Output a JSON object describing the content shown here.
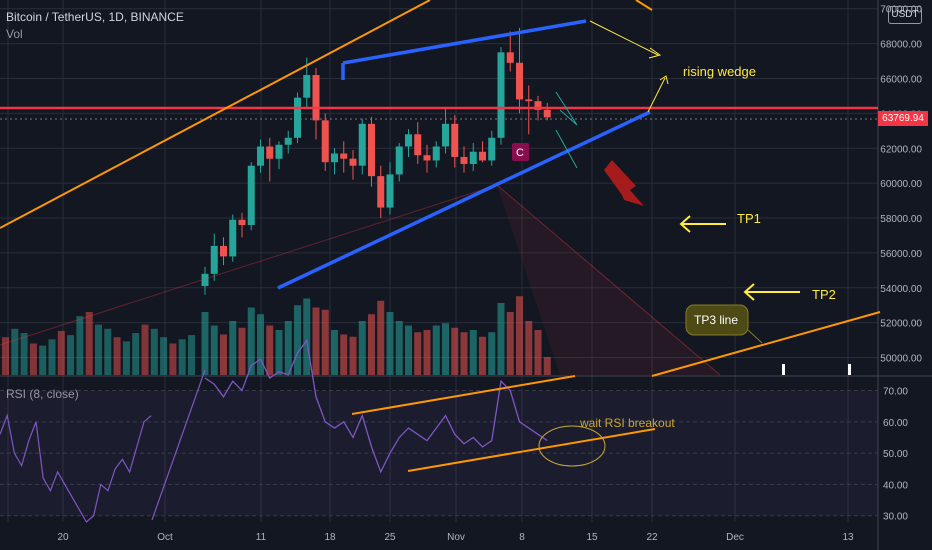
{
  "header": {
    "symbol_line": "Bitcoin / TetherUS, 1D, BINANCE",
    "volume_label": "Vol",
    "rsi_label": "RSI (8, close)",
    "currency_badge": "USDT",
    "last_price": "63769.94"
  },
  "colors": {
    "background": "#131722",
    "bull": "#26a69a",
    "bear": "#ef5350",
    "wedge": "#2962ff",
    "trend": "#ff9800",
    "resistance": "#f23645",
    "annotation": "#ffeb3b",
    "rsi": "#7e57c2"
  },
  "chart_data": [
    {
      "type": "candlestick",
      "title": "",
      "x_ticks": [
        "20",
        "Oct",
        "11",
        "18",
        "25",
        "Nov",
        "8",
        "15",
        "22",
        "Dec",
        "13"
      ],
      "y_ticks": [
        50000,
        52000,
        54000,
        56000,
        58000,
        60000,
        62000,
        64000,
        66000,
        68000,
        70000
      ],
      "ylim": [
        49000,
        70500
      ],
      "last_price": 63769.94,
      "horizontal_line": 64300,
      "candles": [
        {
          "o": 54100,
          "h": 55200,
          "l": 53600,
          "c": 54800
        },
        {
          "o": 54800,
          "h": 57100,
          "l": 54400,
          "c": 56400
        },
        {
          "o": 56400,
          "h": 56900,
          "l": 55300,
          "c": 55800
        },
        {
          "o": 55800,
          "h": 58200,
          "l": 55500,
          "c": 57900
        },
        {
          "o": 57900,
          "h": 58300,
          "l": 56900,
          "c": 57600
        },
        {
          "o": 57600,
          "h": 61200,
          "l": 57300,
          "c": 61000
        },
        {
          "o": 61000,
          "h": 62500,
          "l": 60600,
          "c": 62100
        },
        {
          "o": 62100,
          "h": 62600,
          "l": 60100,
          "c": 61400
        },
        {
          "o": 61400,
          "h": 62400,
          "l": 60800,
          "c": 62200
        },
        {
          "o": 62200,
          "h": 63000,
          "l": 61700,
          "c": 62600
        },
        {
          "o": 62600,
          "h": 65200,
          "l": 62300,
          "c": 64900
        },
        {
          "o": 64900,
          "h": 67200,
          "l": 64300,
          "c": 66200
        },
        {
          "o": 66200,
          "h": 66600,
          "l": 62500,
          "c": 63600
        },
        {
          "o": 63600,
          "h": 64000,
          "l": 60700,
          "c": 61200
        },
        {
          "o": 61200,
          "h": 62000,
          "l": 60500,
          "c": 61700
        },
        {
          "o": 61700,
          "h": 62400,
          "l": 60600,
          "c": 61400
        },
        {
          "o": 61400,
          "h": 61900,
          "l": 60200,
          "c": 61000
        },
        {
          "o": 61000,
          "h": 63700,
          "l": 60500,
          "c": 63400
        },
        {
          "o": 63400,
          "h": 63800,
          "l": 59800,
          "c": 60400
        },
        {
          "o": 60400,
          "h": 61000,
          "l": 58000,
          "c": 58600
        },
        {
          "o": 58600,
          "h": 61200,
          "l": 58200,
          "c": 60500
        },
        {
          "o": 60500,
          "h": 62300,
          "l": 60100,
          "c": 62100
        },
        {
          "o": 62100,
          "h": 63100,
          "l": 61500,
          "c": 62800
        },
        {
          "o": 62800,
          "h": 63500,
          "l": 61100,
          "c": 61600
        },
        {
          "o": 61600,
          "h": 62200,
          "l": 60600,
          "c": 61300
        },
        {
          "o": 61300,
          "h": 62400,
          "l": 60900,
          "c": 62100
        },
        {
          "o": 62100,
          "h": 64300,
          "l": 61700,
          "c": 63400
        },
        {
          "o": 63400,
          "h": 63900,
          "l": 60900,
          "c": 61500
        },
        {
          "o": 61500,
          "h": 62100,
          "l": 60600,
          "c": 61100
        },
        {
          "o": 61100,
          "h": 62300,
          "l": 60700,
          "c": 61800
        },
        {
          "o": 61800,
          "h": 62400,
          "l": 61200,
          "c": 61300
        },
        {
          "o": 61300,
          "h": 63000,
          "l": 61000,
          "c": 62600
        },
        {
          "o": 62600,
          "h": 67800,
          "l": 62200,
          "c": 67500
        },
        {
          "o": 67500,
          "h": 68700,
          "l": 66400,
          "c": 66900
        },
        {
          "o": 66900,
          "h": 68900,
          "l": 64000,
          "c": 64800
        },
        {
          "o": 64800,
          "h": 65600,
          "l": 62800,
          "c": 64700
        },
        {
          "o": 64700,
          "h": 65000,
          "l": 63600,
          "c": 64200
        },
        {
          "o": 64200,
          "h": 64600,
          "l": 63600,
          "c": 63770
        }
      ],
      "volume": [
        28,
        22,
        18,
        24,
        21,
        30,
        27,
        22,
        20,
        24,
        31,
        34,
        30,
        29,
        20,
        18,
        17,
        24,
        27,
        33,
        28,
        24,
        22,
        19,
        20,
        22,
        23,
        21,
        19,
        20,
        17,
        19,
        32,
        28,
        35,
        24,
        20,
        8
      ],
      "annotations": [
        "rising wedge",
        "TP1",
        "TP2",
        "TP3 line"
      ],
      "marker": "C"
    },
    {
      "type": "line",
      "title": "",
      "y_ticks": [
        30,
        40,
        50,
        60,
        70
      ],
      "ylim": [
        28,
        74
      ],
      "rsi": [
        74,
        72,
        68,
        73,
        70,
        78,
        80,
        74,
        76,
        75,
        82,
        86,
        68,
        60,
        58,
        60,
        55,
        62,
        52,
        44,
        50,
        55,
        58,
        56,
        54,
        58,
        62,
        56,
        53,
        55,
        52,
        54,
        73,
        70,
        60,
        58,
        56,
        54
      ],
      "annotation": "wait RSI breakout"
    }
  ]
}
